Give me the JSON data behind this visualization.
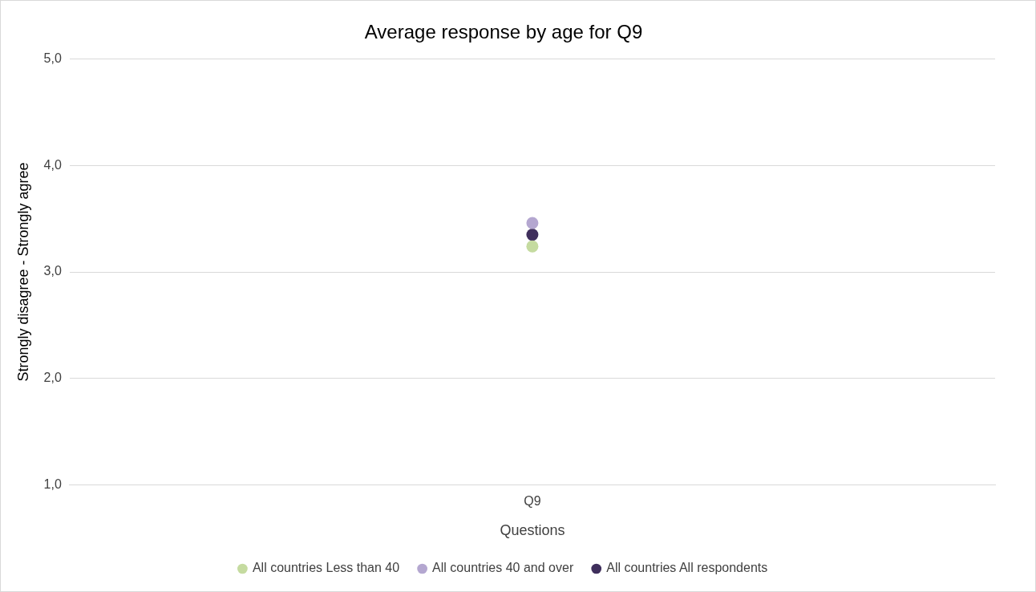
{
  "chart_data": {
    "type": "scatter",
    "title": "Average response by age for Q9",
    "xlabel": "Questions",
    "ylabel": "Strongly disagree - Strongly agree",
    "categories": [
      "Q9"
    ],
    "series": [
      {
        "name": "All countries Less than 40",
        "color": "#c5dba0",
        "values": [
          3.24
        ]
      },
      {
        "name": "All countries 40 and over",
        "color": "#b4a7d0",
        "values": [
          3.46
        ]
      },
      {
        "name": "All countries All respondents",
        "color": "#3f2f5c",
        "values": [
          3.35
        ]
      }
    ],
    "ylim": [
      1,
      5
    ],
    "yticks": [
      {
        "value": 1,
        "label": "1,0"
      },
      {
        "value": 2,
        "label": "2,0"
      },
      {
        "value": 3,
        "label": "3,0"
      },
      {
        "value": 4,
        "label": "4,0"
      },
      {
        "value": 5,
        "label": "5,0"
      }
    ],
    "grid": "y",
    "legend": "bottom",
    "marker": "circle"
  }
}
